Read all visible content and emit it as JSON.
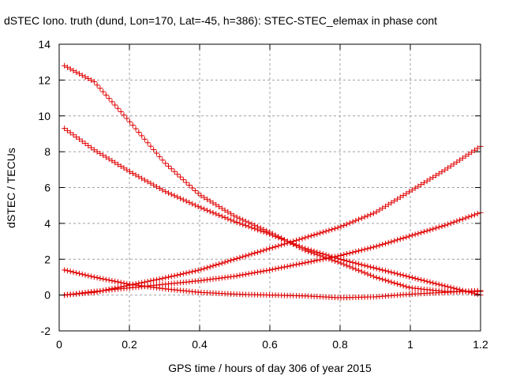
{
  "chart_data": {
    "type": "scatter",
    "title": "dSTEC Iono. truth (dund, Lon=170, Lat=-45, h=386): STEC-STEC_elemax in phase cont",
    "xlabel": "GPS time / hours of day 306 of year 2015",
    "ylabel": "dSTEC  / TECUs",
    "xlim": [
      0,
      1.2
    ],
    "ylim": [
      -2,
      14
    ],
    "x_ticks": [
      0,
      0.2,
      0.4,
      0.6,
      0.8,
      1,
      1.2
    ],
    "x_tick_labels": [
      "0",
      "0.2",
      "0.4",
      "0.6",
      "0.8",
      "1",
      "1.2"
    ],
    "y_ticks": [
      -2,
      0,
      2,
      4,
      6,
      8,
      10,
      12,
      14
    ],
    "y_tick_labels": [
      "-2",
      "0",
      "2",
      "4",
      "6",
      "8",
      "10",
      "12",
      "14"
    ],
    "grid": true,
    "marker": "+",
    "color": "#e00000",
    "x_range": [
      0.015,
      1.2
    ],
    "series": [
      {
        "x": [
          0.015,
          0.1,
          0.2,
          0.3,
          0.4,
          0.5,
          0.6,
          0.7,
          0.8,
          0.9,
          1.0,
          1.1,
          1.2
        ],
        "y": [
          12.8,
          11.9,
          9.7,
          7.4,
          5.6,
          4.4,
          3.5,
          2.5,
          1.8,
          1.0,
          0.4,
          0.2,
          0.2
        ]
      },
      {
        "x": [
          0.015,
          0.1,
          0.2,
          0.3,
          0.4,
          0.5,
          0.6,
          0.7,
          0.8,
          0.9,
          1.0,
          1.1,
          1.2
        ],
        "y": [
          9.3,
          8.1,
          6.9,
          5.8,
          4.9,
          4.1,
          3.4,
          2.6,
          2.0,
          1.5,
          1.0,
          0.5,
          0.0
        ]
      },
      {
        "x": [
          0.015,
          0.1,
          0.2,
          0.3,
          0.4,
          0.5,
          0.6,
          0.7,
          0.8,
          0.9,
          1.0,
          1.1,
          1.2
        ],
        "y": [
          0.0,
          0.15,
          0.55,
          0.95,
          1.4,
          2.0,
          2.6,
          3.2,
          3.8,
          4.6,
          5.8,
          7.0,
          8.3
        ]
      },
      {
        "x": [
          0.015,
          0.1,
          0.2,
          0.3,
          0.4,
          0.5,
          0.6,
          0.7,
          0.8,
          0.9,
          1.0,
          1.1,
          1.2
        ],
        "y": [
          0.0,
          0.2,
          0.4,
          0.6,
          0.8,
          1.05,
          1.4,
          1.8,
          2.2,
          2.7,
          3.3,
          3.9,
          4.6
        ]
      },
      {
        "x": [
          0.015,
          0.1,
          0.2,
          0.3,
          0.4,
          0.5,
          0.6,
          0.7,
          0.8,
          0.9,
          1.0,
          1.1,
          1.2
        ],
        "y": [
          1.4,
          1.0,
          0.6,
          0.35,
          0.15,
          0.05,
          0.0,
          -0.05,
          -0.15,
          -0.1,
          0.05,
          0.15,
          0.25
        ]
      }
    ]
  }
}
